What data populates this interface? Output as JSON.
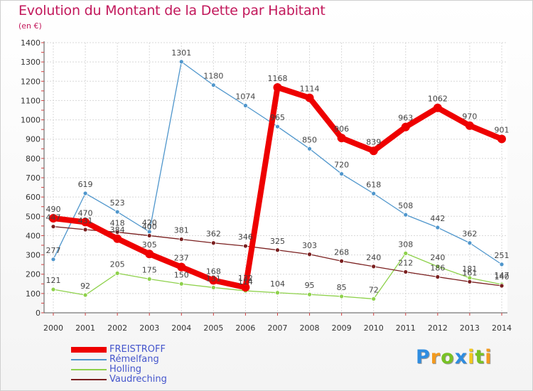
{
  "title": "Evolution du Montant de la Dette par Habitant",
  "subtitle": "(en €)",
  "chart_data": {
    "type": "line",
    "title": "Evolution du Montant de la Dette par Habitant",
    "subtitle": "(en €)",
    "xlabel": "",
    "ylabel": "",
    "categories": [
      "2000",
      "2001",
      "2002",
      "2003",
      "2004",
      "2005",
      "2006",
      "2007",
      "2008",
      "2009",
      "2010",
      "2011",
      "2012",
      "2013",
      "2014"
    ],
    "ylim": [
      0,
      1400
    ],
    "yticks": [
      0,
      100,
      200,
      300,
      400,
      500,
      600,
      700,
      800,
      900,
      1000,
      1100,
      1200,
      1300,
      1400
    ],
    "grid": true,
    "legend": "bottom-left",
    "series": [
      {
        "name": "FREISTROFF",
        "color": "#ee0000",
        "values": [
          490,
          470,
          384,
          305,
          237,
          168,
          132,
          1168,
          1114,
          906,
          839,
          963,
          1062,
          970,
          901
        ]
      },
      {
        "name": "Rémelfang",
        "color": "#4f96cc",
        "values": [
          277,
          619,
          523,
          420,
          1301,
          1180,
          1074,
          965,
          850,
          720,
          618,
          508,
          442,
          362,
          251
        ]
      },
      {
        "name": "Holling",
        "color": "#8ed14b",
        "values": [
          121,
          92,
          205,
          175,
          150,
          131,
          114,
          104,
          95,
          85,
          72,
          308,
          240,
          181,
          147
        ]
      },
      {
        "name": "Vaudreching",
        "color": "#7a1f1f",
        "values": [
          447,
          431,
          418,
          400,
          381,
          362,
          346,
          325,
          303,
          268,
          240,
          212,
          186,
          161,
          140
        ]
      }
    ]
  },
  "logo": {
    "letters": [
      {
        "ch": "P",
        "color": "#2f8de0"
      },
      {
        "ch": "r",
        "color": "#f39a1e"
      },
      {
        "ch": "o",
        "color": "#78c225"
      },
      {
        "ch": "x",
        "color": "#2f8de0"
      },
      {
        "ch": "i",
        "color": "#f3c81e"
      },
      {
        "ch": "t",
        "color": "#78c225"
      },
      {
        "ch": "i",
        "color": "#f39a1e"
      }
    ]
  }
}
